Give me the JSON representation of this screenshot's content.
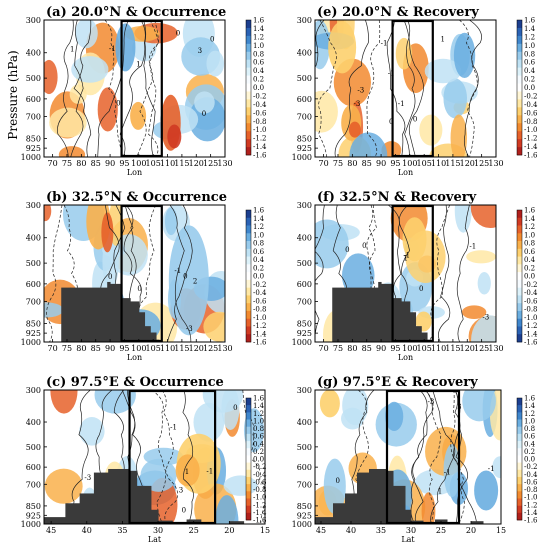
{
  "figure": {
    "ylabel": "Pressure (hPa)"
  },
  "colorbar": {
    "levels": [
      "1.6",
      "1.4",
      "1.2",
      "1.0",
      "0.8",
      "0.6",
      "0.4",
      "0.2",
      "0.0",
      "-0.2",
      "-0.4",
      "-0.6",
      "-0.8",
      "-1.0",
      "-1.2",
      "-1.4",
      "-1.6"
    ],
    "colors_blue_top": [
      "#1c3f8f",
      "#2a62b4",
      "#3f86cc",
      "#6aaee0",
      "#98cbec",
      "#bfe2f4",
      "#ddf2fa",
      "#f6fbff",
      "#ffffff",
      "#fff6d6",
      "#ffe8a4",
      "#fdd06e",
      "#f9b04b",
      "#f28a2f",
      "#e6612a",
      "#d03a22",
      "#b0201c"
    ],
    "colors_red_top": [
      "#b0201c",
      "#d03a22",
      "#e6612a",
      "#f28a2f",
      "#f9b04b",
      "#fdd06e",
      "#ffe8a4",
      "#fff6d6",
      "#ffffff",
      "#f6fbff",
      "#ddf2fa",
      "#bfe2f4",
      "#98cbec",
      "#6aaee0",
      "#3f86cc",
      "#2a62b4",
      "#1c3f8f"
    ]
  },
  "chart_data": [
    {
      "id": "a",
      "type": "heatmap",
      "title": "(a) 20.0°N & Occurrence",
      "xlabel": "Lon",
      "xlim": [
        67,
        130
      ],
      "xticks": [
        "70",
        "75",
        "80",
        "85",
        "90",
        "95",
        "100",
        "105",
        "110",
        "115",
        "120",
        "125",
        "130"
      ],
      "yticks": [
        "300",
        "400",
        "500",
        "600",
        "700",
        "850",
        "925",
        "1000"
      ],
      "box": [
        94,
        108
      ],
      "colorbar_orientation": "blue-top",
      "contour_labels": [
        "0",
        "0",
        "0",
        "0",
        "-1",
        "1",
        "1",
        "3"
      ],
      "terrain": []
    },
    {
      "id": "e",
      "type": "heatmap",
      "title": "(e) 20.0°N & Recovery",
      "xlabel": "Lon",
      "xlim": [
        67,
        130
      ],
      "xticks": [
        "70",
        "75",
        "80",
        "85",
        "90",
        "95",
        "100",
        "105",
        "110",
        "115",
        "120",
        "125",
        "130"
      ],
      "yticks": [
        "300",
        "400",
        "500",
        "600",
        "700",
        "850",
        "925",
        "1000"
      ],
      "box": [
        94,
        108
      ],
      "colorbar_orientation": "blue-top",
      "contour_labels": [
        "0",
        "0",
        "-1",
        "-1",
        "-3",
        "-3",
        "1",
        "-1"
      ],
      "terrain": []
    },
    {
      "id": "b",
      "type": "heatmap",
      "title": "(b) 32.5°N & Occurrence",
      "xlabel": "Lon",
      "xlim": [
        67,
        130
      ],
      "xticks": [
        "70",
        "75",
        "80",
        "85",
        "90",
        "95",
        "100",
        "105",
        "110",
        "115",
        "120",
        "125",
        "130"
      ],
      "yticks": [
        "300",
        "400",
        "500",
        "600",
        "700",
        "850",
        "925",
        "1000"
      ],
      "box": [
        94,
        108
      ],
      "colorbar_orientation": "blue-top",
      "contour_labels": [
        "0",
        "0",
        "0",
        "-1",
        "1",
        "-3",
        "1",
        "2"
      ],
      "terrain": [
        {
          "x0": 67,
          "x1": 73,
          "p": 1000
        },
        {
          "x0": 73,
          "x1": 76,
          "p": 620
        },
        {
          "x0": 76,
          "x1": 89,
          "p": 620
        },
        {
          "x0": 89,
          "x1": 90,
          "p": 590
        },
        {
          "x0": 90,
          "x1": 94,
          "p": 600
        },
        {
          "x0": 94,
          "x1": 97,
          "p": 680
        },
        {
          "x0": 97,
          "x1": 100,
          "p": 700
        },
        {
          "x0": 100,
          "x1": 102,
          "p": 770
        },
        {
          "x0": 102,
          "x1": 104,
          "p": 870
        },
        {
          "x0": 104,
          "x1": 106,
          "p": 920
        },
        {
          "x0": 106,
          "x1": 107,
          "p": 980
        }
      ]
    },
    {
      "id": "f",
      "type": "heatmap",
      "title": "(f) 32.5°N & Recovery",
      "xlabel": "Lon",
      "xlim": [
        67,
        130
      ],
      "xticks": [
        "70",
        "75",
        "80",
        "85",
        "90",
        "95",
        "100",
        "105",
        "110",
        "115",
        "120",
        "125",
        "130"
      ],
      "yticks": [
        "300",
        "400",
        "500",
        "600",
        "700",
        "850",
        "925",
        "1000"
      ],
      "box": [
        94,
        108
      ],
      "colorbar_orientation": "red-top",
      "contour_labels": [
        "0",
        "0",
        "0",
        "-1",
        "-1",
        "-1",
        "-3",
        "-3",
        "1"
      ],
      "terrain": [
        {
          "x0": 67,
          "x1": 73,
          "p": 1000
        },
        {
          "x0": 73,
          "x1": 76,
          "p": 620
        },
        {
          "x0": 76,
          "x1": 89,
          "p": 620
        },
        {
          "x0": 89,
          "x1": 90,
          "p": 590
        },
        {
          "x0": 90,
          "x1": 94,
          "p": 600
        },
        {
          "x0": 94,
          "x1": 97,
          "p": 680
        },
        {
          "x0": 97,
          "x1": 100,
          "p": 700
        },
        {
          "x0": 100,
          "x1": 102,
          "p": 770
        },
        {
          "x0": 102,
          "x1": 104,
          "p": 870
        },
        {
          "x0": 104,
          "x1": 106,
          "p": 920
        },
        {
          "x0": 106,
          "x1": 107,
          "p": 980
        }
      ]
    },
    {
      "id": "c",
      "type": "heatmap",
      "title": "(c) 97.5°E & Occurrence",
      "xlabel": "Lat",
      "xlim": [
        46,
        15
      ],
      "xdir": "decreasing",
      "xticks": [
        "45",
        "40",
        "35",
        "30",
        "25",
        "20",
        "15"
      ],
      "yticks": [
        "300",
        "400",
        "500",
        "600",
        "700",
        "850",
        "925",
        "1000"
      ],
      "box": [
        34,
        22
      ],
      "colorbar_orientation": "blue-top",
      "contour_labels": [
        "0",
        "0",
        "1",
        "-1",
        "-1",
        "-3",
        "3"
      ],
      "terrain": [
        {
          "x0": 46,
          "x1": 43,
          "p": 940
        },
        {
          "x0": 43,
          "x1": 41,
          "p": 830
        },
        {
          "x0": 41,
          "x1": 39,
          "p": 760
        },
        {
          "x0": 39,
          "x1": 37,
          "p": 630
        },
        {
          "x0": 37,
          "x1": 34,
          "p": 610
        },
        {
          "x0": 34,
          "x1": 33,
          "p": 620
        },
        {
          "x0": 33,
          "x1": 31,
          "p": 710
        },
        {
          "x0": 31,
          "x1": 30,
          "p": 880
        },
        {
          "x0": 30,
          "x1": 28,
          "p": 970
        },
        {
          "x0": 26,
          "x1": 24,
          "p": 960
        },
        {
          "x0": 20,
          "x1": 18,
          "p": 975
        }
      ]
    },
    {
      "id": "g",
      "type": "heatmap",
      "title": "(g) 97.5°E & Recovery",
      "xlabel": "Lat",
      "xlim": [
        46,
        15
      ],
      "xdir": "decreasing",
      "xticks": [
        "45",
        "40",
        "35",
        "30",
        "25",
        "20",
        "15"
      ],
      "yticks": [
        "300",
        "400",
        "500",
        "600",
        "700",
        "850",
        "925",
        "1000"
      ],
      "box": [
        34,
        22
      ],
      "colorbar_orientation": "blue-top",
      "contour_labels": [
        "0",
        "1",
        "-1",
        "-1",
        "-3",
        "3"
      ],
      "terrain": [
        {
          "x0": 46,
          "x1": 43,
          "p": 940
        },
        {
          "x0": 43,
          "x1": 41,
          "p": 830
        },
        {
          "x0": 41,
          "x1": 39,
          "p": 760
        },
        {
          "x0": 39,
          "x1": 37,
          "p": 630
        },
        {
          "x0": 37,
          "x1": 34,
          "p": 610
        },
        {
          "x0": 34,
          "x1": 33,
          "p": 620
        },
        {
          "x0": 33,
          "x1": 31,
          "p": 710
        },
        {
          "x0": 31,
          "x1": 30,
          "p": 880
        },
        {
          "x0": 30,
          "x1": 28,
          "p": 970
        },
        {
          "x0": 26,
          "x1": 24,
          "p": 960
        },
        {
          "x0": 20,
          "x1": 18,
          "p": 975
        }
      ]
    }
  ]
}
